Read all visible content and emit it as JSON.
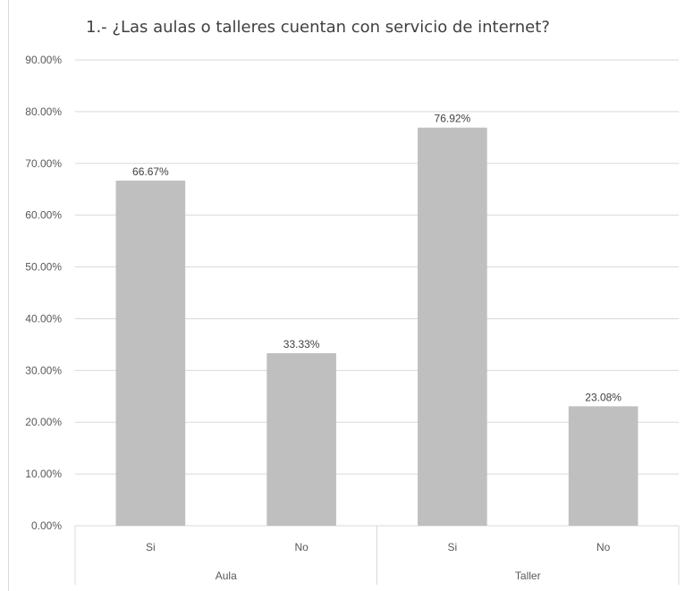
{
  "chart_data": {
    "type": "bar",
    "title": "1.- ¿Las aulas o talleres cuentan con servicio de internet?",
    "xlabel": "",
    "ylabel": "",
    "ylim": [
      0,
      90
    ],
    "yticks": [
      0,
      10,
      20,
      30,
      40,
      50,
      60,
      70,
      80,
      90
    ],
    "ytick_labels": [
      "0.00%",
      "10.00%",
      "20.00%",
      "30.00%",
      "40.00%",
      "50.00%",
      "60.00%",
      "70.00%",
      "80.00%",
      "90.00%"
    ],
    "groups": [
      {
        "label": "Aula",
        "categories": [
          "Si",
          "No"
        ]
      },
      {
        "label": "Taller",
        "categories": [
          "Si",
          "No"
        ]
      }
    ],
    "categories": [
      "Si",
      "No",
      "Si",
      "No"
    ],
    "values": [
      66.67,
      33.33,
      76.92,
      23.08
    ],
    "data_labels": [
      "66.67%",
      "33.33%",
      "76.92%",
      "23.08%"
    ],
    "bar_color": "#bfbfbf",
    "grid": true,
    "legend": "none"
  }
}
